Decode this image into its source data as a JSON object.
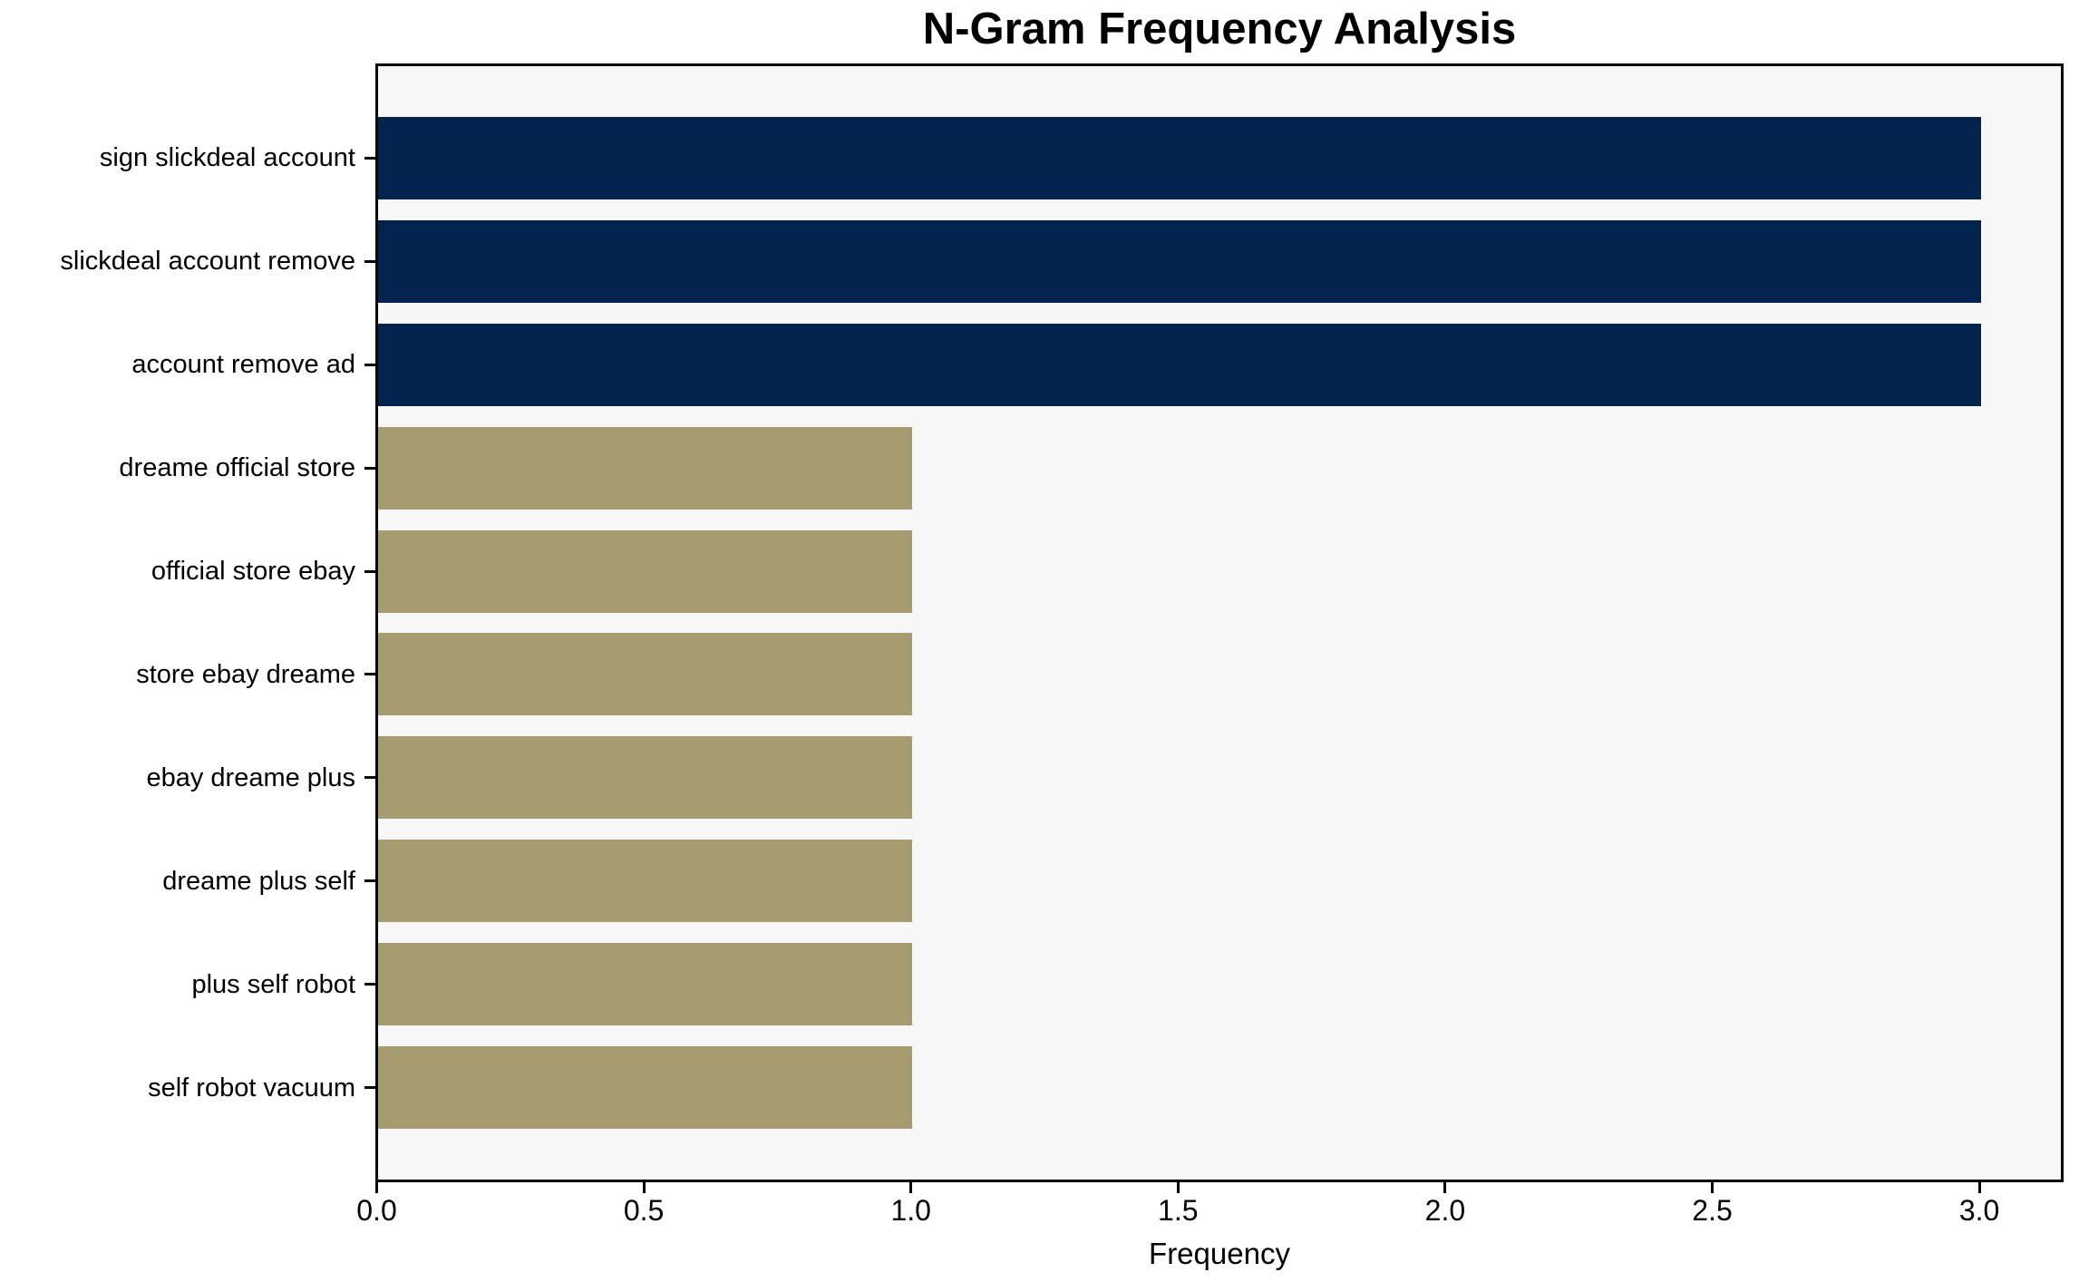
{
  "chart_data": {
    "type": "bar",
    "orientation": "horizontal",
    "title": "N-Gram Frequency Analysis",
    "xlabel": "Frequency",
    "ylabel": "",
    "categories": [
      "sign slickdeal account",
      "slickdeal account remove",
      "account remove ad",
      "dreame official store",
      "official store ebay",
      "store ebay dreame",
      "ebay dreame plus",
      "dreame plus self",
      "plus self robot",
      "self robot vacuum"
    ],
    "values": [
      3,
      3,
      3,
      1,
      1,
      1,
      1,
      1,
      1,
      1
    ],
    "bar_colors": [
      "#02234d",
      "#02234d",
      "#02234d",
      "#a69c70",
      "#a69c70",
      "#a69c70",
      "#a69c70",
      "#a69c70",
      "#a69c70",
      "#a69c70"
    ],
    "xlim": [
      0,
      3.15
    ],
    "xticks": [
      0,
      0.5,
      1,
      1.5,
      2,
      2.5,
      3
    ],
    "xtick_labels": [
      "0.0",
      "0.5",
      "1.0",
      "1.5",
      "2.0",
      "2.5",
      "3.0"
    ],
    "grid": false,
    "legend": "none",
    "colors": {
      "navy": "#02234d",
      "khaki": "#a69c70",
      "plot_background": "#f7f7f7",
      "figure_background": "#ffffff",
      "axis": "#000000",
      "text": "#000000"
    }
  }
}
